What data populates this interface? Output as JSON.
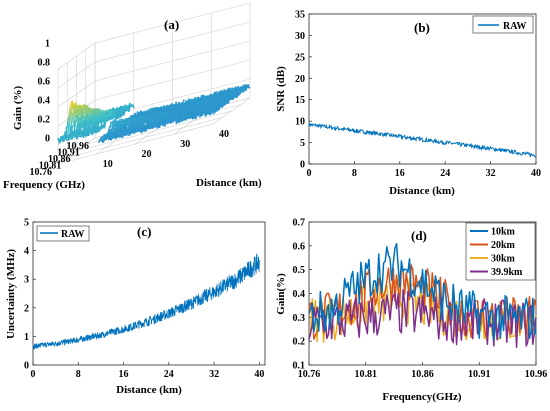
{
  "colors": {
    "blue": "#0072BD",
    "orange": "#D95319",
    "yellow": "#EDB120",
    "purple": "#7E2F8E",
    "surface_low": "#1f77d0",
    "surface_mid": "#3fc3c8",
    "surface_high": "#f2d21c"
  },
  "chart_data": [
    {
      "panel_label": "(a)",
      "type": "area",
      "surface_3d": true,
      "zlabel": "Gain (%)",
      "xlabel": "Frequency (GHz)",
      "ylabel": "Distance (km)",
      "z_ticks": [
        "0",
        "0.2",
        "0.4",
        "0.6",
        "0.8",
        "1"
      ],
      "x_ticks": [
        "10.96",
        "10.91",
        "10.86",
        "10.81",
        "10.76"
      ],
      "y_ticks": [
        "10",
        "20",
        "30",
        "40"
      ],
      "zlim": [
        0,
        1
      ],
      "xlim": [
        10.76,
        10.96
      ],
      "ylim": [
        0,
        40
      ],
      "peak": {
        "frequency": 10.835,
        "distance": 0,
        "gain": 0.55
      },
      "grid": true
    },
    {
      "panel_label": "(b)",
      "type": "line",
      "xlabel": "Distance (km)",
      "ylabel": "SNR (dB)",
      "x_ticks": [
        "0",
        "8",
        "16",
        "24",
        "32",
        "40"
      ],
      "y_ticks": [
        "0",
        "5",
        "10",
        "15",
        "20",
        "25",
        "30",
        "35"
      ],
      "xlim": [
        0,
        40
      ],
      "ylim": [
        0,
        35
      ],
      "legend_position": "top-right",
      "series": [
        {
          "name": "RAW",
          "x": [
            0,
            8,
            16,
            24,
            32,
            40
          ],
          "y": [
            9.2,
            7.8,
            6.4,
            5.0,
            3.6,
            2.0
          ]
        }
      ]
    },
    {
      "panel_label": "(c)",
      "type": "line",
      "xlabel": "Distance (km)",
      "ylabel": "Uncertainty (MHz)",
      "x_ticks": [
        "0",
        "8",
        "16",
        "24",
        "32",
        "40"
      ],
      "y_ticks": [
        "0",
        "1",
        "2",
        "3",
        "4",
        "5"
      ],
      "xlim": [
        0,
        41
      ],
      "ylim": [
        0,
        5
      ],
      "legend_position": "top-left",
      "series": [
        {
          "name": "RAW",
          "x": [
            0,
            4,
            8,
            12,
            16,
            20,
            24,
            28,
            32,
            36,
            40
          ],
          "y": [
            0.65,
            0.75,
            0.88,
            1.05,
            1.25,
            1.5,
            1.8,
            2.15,
            2.55,
            3.0,
            3.6
          ]
        }
      ]
    },
    {
      "panel_label": "(d)",
      "type": "line",
      "xlabel": "Frequency(GHz)",
      "ylabel": "Gain(%)",
      "x_ticks": [
        "10.76",
        "10.81",
        "10.86",
        "10.91",
        "10.96"
      ],
      "y_ticks": [
        "0.1",
        "0.2",
        "0.3",
        "0.4",
        "0.5",
        "0.6",
        "0.7"
      ],
      "xlim": [
        10.76,
        10.96
      ],
      "ylim": [
        0.1,
        0.7
      ],
      "legend_position": "top-right",
      "series": [
        {
          "name": "10km",
          "x": [
            10.76,
            10.78,
            10.8,
            10.82,
            10.84,
            10.86,
            10.88,
            10.9,
            10.92,
            10.94,
            10.96
          ],
          "y": [
            0.3,
            0.33,
            0.42,
            0.5,
            0.52,
            0.45,
            0.37,
            0.32,
            0.3,
            0.29,
            0.3
          ]
        },
        {
          "name": "20km",
          "x": [
            10.76,
            10.78,
            10.8,
            10.82,
            10.84,
            10.86,
            10.88,
            10.9,
            10.92,
            10.94,
            10.96
          ],
          "y": [
            0.3,
            0.31,
            0.36,
            0.43,
            0.46,
            0.42,
            0.36,
            0.31,
            0.3,
            0.29,
            0.29
          ]
        },
        {
          "name": "30km",
          "x": [
            10.76,
            10.78,
            10.8,
            10.82,
            10.84,
            10.86,
            10.88,
            10.9,
            10.92,
            10.94,
            10.96
          ],
          "y": [
            0.29,
            0.3,
            0.32,
            0.36,
            0.38,
            0.35,
            0.32,
            0.3,
            0.29,
            0.28,
            0.29
          ]
        },
        {
          "name": "39.9km",
          "x": [
            10.76,
            10.78,
            10.8,
            10.82,
            10.84,
            10.86,
            10.88,
            10.9,
            10.92,
            10.94,
            10.96
          ],
          "y": [
            0.27,
            0.28,
            0.29,
            0.31,
            0.32,
            0.31,
            0.29,
            0.28,
            0.28,
            0.27,
            0.27
          ]
        }
      ]
    }
  ]
}
